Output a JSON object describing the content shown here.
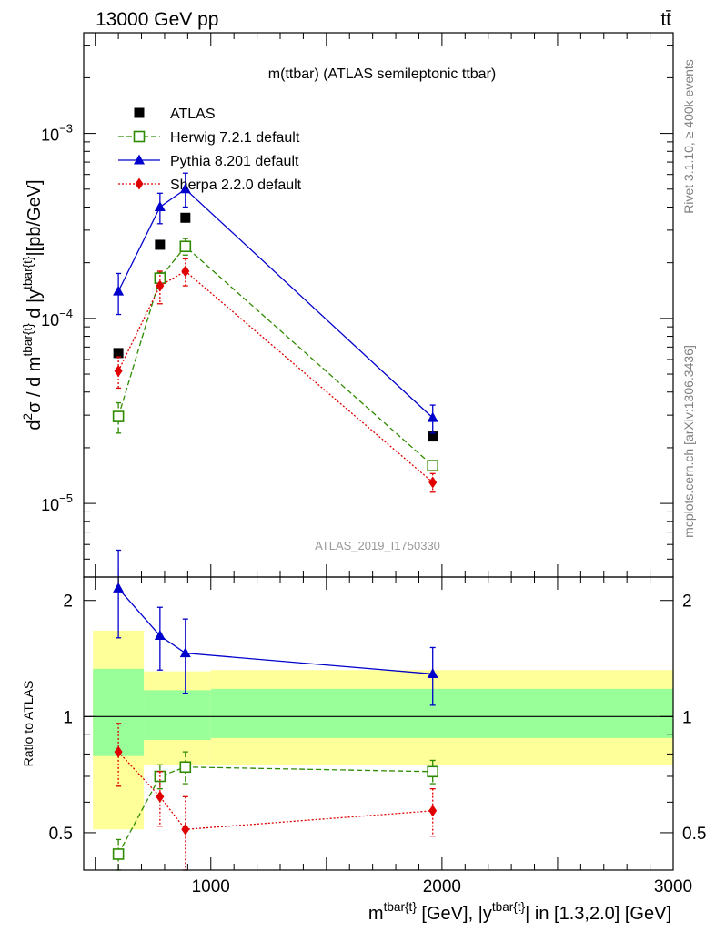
{
  "header": {
    "left": "13000 GeV pp",
    "right": "tt̄"
  },
  "side_labels": {
    "rivet": "Rivet 3.1.10, ≥ 400k events",
    "mcplots": "mcplots.cern.ch [arXiv:1306.3436]"
  },
  "colors": {
    "atlas": "#000000",
    "herwig": "#2e8b00",
    "pythia": "#0000cc",
    "sherpa": "#e00000",
    "band_outer": "#ffff99",
    "band_inner": "#99ff99",
    "watermark": "#999999",
    "side_text": "#808080"
  },
  "chart_data": [
    {
      "type": "scatter",
      "panel": "main",
      "title": "m(ttbar) (ATLAS semileptonic ttbar)",
      "watermark": "ATLAS_2019_I1750330",
      "ylabel": "d²σ / d m^{tbar{t}} d |y^{tbar{t}}|[pb/GeV]",
      "yscale": "log",
      "xlim": [
        450,
        3000
      ],
      "ylim": [
        4e-06,
        0.0035
      ],
      "yticks": [
        {
          "value": 0.001,
          "base": "10",
          "exp": "−3"
        },
        {
          "value": 0.0001,
          "base": "10",
          "exp": "−4"
        },
        {
          "value": 1e-05,
          "base": "10",
          "exp": "−5"
        }
      ],
      "legend_position": "top-left",
      "series": [
        {
          "name": "ATLAS",
          "marker": "square",
          "line": "none",
          "x": [
            600,
            780,
            890,
            1960
          ],
          "y": [
            6.5e-05,
            0.00025,
            0.00035,
            2.3e-05
          ],
          "err_lo": [
            0,
            0,
            0,
            0
          ],
          "err_hi": [
            0,
            0,
            0,
            0
          ]
        },
        {
          "name": "Herwig 7.2.1 default",
          "marker": "open-square",
          "line": "dashed",
          "x": [
            600,
            780,
            890,
            1960
          ],
          "y": [
            2.95e-05,
            0.000165,
            0.000245,
            1.6e-05
          ],
          "err_lo": [
            5.5e-06,
            1.2e-05,
            2.5e-05,
            1e-06
          ],
          "err_hi": [
            5.5e-06,
            1.2e-05,
            2.5e-05,
            1e-06
          ]
        },
        {
          "name": "Pythia 8.201 default",
          "marker": "triangle",
          "line": "solid",
          "x": [
            600,
            780,
            890,
            1960
          ],
          "y": [
            0.00014,
            0.0004,
            0.0005,
            2.9e-05
          ],
          "err_lo": [
            3.5e-05,
            7.5e-05,
            0.0001,
            5e-06
          ],
          "err_hi": [
            3.5e-05,
            7.5e-05,
            0.00011,
            5e-06
          ]
        },
        {
          "name": "Sherpa 2.2.0 default",
          "marker": "diamond",
          "line": "dotted",
          "x": [
            600,
            780,
            890,
            1960
          ],
          "y": [
            5.2e-05,
            0.00015,
            0.00018,
            1.3e-05
          ],
          "err_lo": [
            1e-05,
            3e-05,
            3e-05,
            1.5e-06
          ],
          "err_hi": [
            1e-05,
            3e-05,
            3e-05,
            1.5e-06
          ]
        }
      ]
    },
    {
      "type": "scatter",
      "panel": "ratio",
      "ylabel": "Ratio to ATLAS",
      "xlabel": "m^{tbar{t}} [GeV], |y^{tbar{t}}| in [1.3,2.0] [GeV]",
      "xlim": [
        450,
        3000
      ],
      "ylim": [
        0.4,
        2.3
      ],
      "xticks": [
        1000,
        2000,
        3000
      ],
      "yticks": [
        0.5,
        1,
        2
      ],
      "bands": [
        {
          "x0": 490,
          "x1": 710,
          "outer": [
            0.51,
            1.67
          ],
          "inner": [
            0.79,
            1.33
          ]
        },
        {
          "x0": 710,
          "x1": 1000,
          "outer": [
            0.75,
            1.31
          ],
          "inner": [
            0.87,
            1.17
          ]
        },
        {
          "x0": 1000,
          "x1": 3000,
          "outer": [
            0.75,
            1.32
          ],
          "inner": [
            0.88,
            1.18
          ]
        }
      ],
      "series": [
        {
          "name": "Herwig 7.2.1 default",
          "x": [
            600,
            780,
            890,
            1960
          ],
          "y": [
            0.44,
            0.7,
            0.74,
            0.72
          ],
          "err_lo": [
            0.04,
            0.05,
            0.07,
            0.05
          ],
          "err_hi": [
            0.04,
            0.05,
            0.07,
            0.05
          ]
        },
        {
          "name": "Pythia 8.201 default",
          "x": [
            600,
            780,
            890,
            1960
          ],
          "y": [
            2.15,
            1.62,
            1.46,
            1.29
          ],
          "err_lo": [
            0.55,
            0.3,
            0.31,
            0.22
          ],
          "err_hi": [
            0.55,
            0.3,
            0.33,
            0.22
          ]
        },
        {
          "name": "Sherpa 2.2.0 default",
          "x": [
            600,
            780,
            890,
            1960
          ],
          "y": [
            0.81,
            0.62,
            0.51,
            0.57
          ],
          "err_lo": [
            0.15,
            0.1,
            0.11,
            0.08
          ],
          "err_hi": [
            0.15,
            0.1,
            0.11,
            0.08
          ]
        }
      ]
    }
  ]
}
